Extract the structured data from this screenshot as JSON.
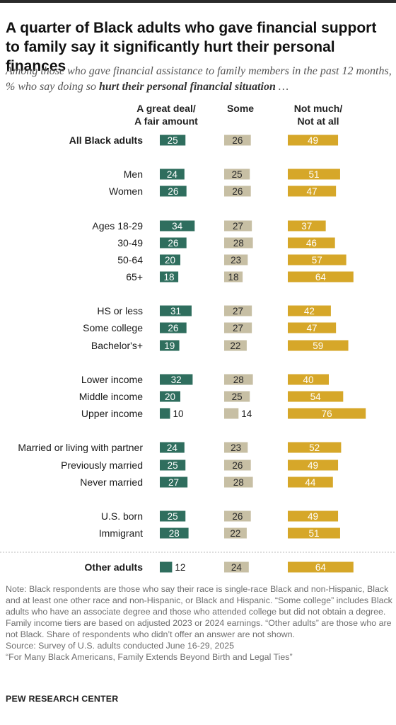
{
  "title": "A quarter of Black adults who gave financial support to family say it significantly hurt their personal finances",
  "subtitle_pre": "Among those who gave financial assistance to family members in the past 12 months, % who say doing so ",
  "subtitle_bold": "hurt their personal financial situation",
  "subtitle_post": " …",
  "colors": {
    "great": "#2f6e5e",
    "some": "#c7bfa4",
    "notmuch": "#d6a729"
  },
  "chart_data": {
    "type": "bar",
    "series": [
      {
        "name": "A great deal/ A fair amount",
        "label_lines": [
          "A great deal/",
          "A fair amount"
        ]
      },
      {
        "name": "Some",
        "label_lines": [
          "Some"
        ]
      },
      {
        "name": "Not much/ Not at all",
        "label_lines": [
          "Not much/",
          "Not at all"
        ]
      }
    ],
    "rows": [
      {
        "label": "All Black adults",
        "bold": true,
        "values": [
          25,
          26,
          49
        ]
      },
      {
        "label": "Men",
        "values": [
          24,
          25,
          51
        ]
      },
      {
        "label": "Women",
        "values": [
          26,
          26,
          47
        ]
      },
      {
        "label": "Ages 18-29",
        "values": [
          34,
          27,
          37
        ]
      },
      {
        "label": "30-49",
        "values": [
          26,
          28,
          46
        ]
      },
      {
        "label": "50-64",
        "values": [
          20,
          23,
          57
        ]
      },
      {
        "label": "65+",
        "values": [
          18,
          18,
          64
        ]
      },
      {
        "label": "HS or less",
        "values": [
          31,
          27,
          42
        ]
      },
      {
        "label": "Some college",
        "values": [
          26,
          27,
          47
        ]
      },
      {
        "label": "Bachelor's+",
        "values": [
          19,
          22,
          59
        ]
      },
      {
        "label": "Lower income",
        "values": [
          32,
          28,
          40
        ]
      },
      {
        "label": "Middle income",
        "values": [
          20,
          25,
          54
        ]
      },
      {
        "label": "Upper income",
        "values": [
          10,
          14,
          76
        ]
      },
      {
        "label": "Married or living with partner",
        "values": [
          24,
          23,
          52
        ]
      },
      {
        "label": "Previously married",
        "values": [
          25,
          26,
          49
        ]
      },
      {
        "label": "Never married",
        "values": [
          27,
          28,
          44
        ]
      },
      {
        "label": "U.S. born",
        "values": [
          25,
          26,
          49
        ]
      },
      {
        "label": "Immigrant",
        "values": [
          28,
          22,
          51
        ]
      },
      {
        "label": "Other adults",
        "bold": true,
        "values": [
          12,
          24,
          64
        ]
      }
    ]
  },
  "note": [
    "Note: Black respondents are those who say their race is single-race Black and non-Hispanic, Black and at least one other race and non-Hispanic, or Black and Hispanic. “Some college” includes Black adults who have an associate degree and those who attended college but did not obtain a degree. Family income tiers are based on adjusted 2023 or 2024 earnings. “Other adults” are those who are not Black. Share of respondents who didn’t offer an answer are not shown.",
    "Source: Survey of U.S. adults conducted June 16-29, 2025",
    "“For Many Black Americans, Family Extends Beyond Birth and Legal Ties”"
  ],
  "brand": "PEW RESEARCH CENTER"
}
